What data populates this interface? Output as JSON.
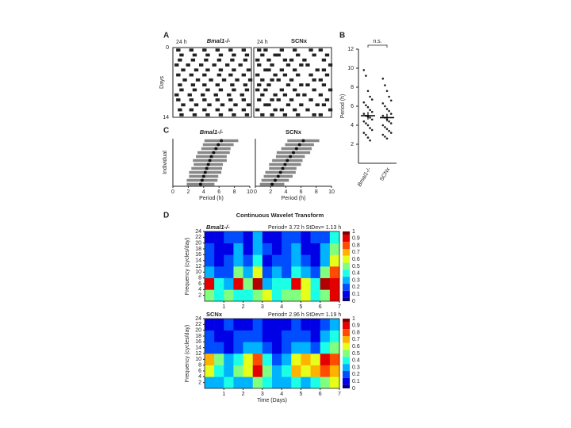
{
  "chart_data": [
    {
      "type": "actogram",
      "panel": "A",
      "title": "Bmal1-/-",
      "period_label": "24 h",
      "ylabel": "Days",
      "xlim": [
        0,
        24
      ],
      "ylim": [
        0,
        14
      ],
      "yticks": [
        0,
        14
      ],
      "rows": [
        [
          1,
          5,
          9,
          13,
          17,
          21
        ],
        [
          2,
          6,
          10,
          14,
          18,
          22
        ],
        [
          1.5,
          5.5,
          9.5,
          13.5,
          17.5,
          21.5
        ],
        [
          0.5,
          4,
          8,
          12,
          16,
          20
        ],
        [
          2.5,
          6.5,
          10,
          14,
          18,
          22.5
        ],
        [
          1,
          5,
          9,
          13.5,
          17,
          21
        ],
        [
          3,
          7,
          11,
          15,
          19,
          23
        ],
        [
          1.5,
          5.5,
          9,
          13,
          17.5,
          21.5
        ],
        [
          2,
          6,
          10,
          14,
          18,
          22
        ],
        [
          0.5,
          4.5,
          8.5,
          12.5,
          16.5,
          20.5
        ],
        [
          1,
          5,
          9,
          13,
          17,
          21
        ],
        [
          2.5,
          6.5,
          10.5,
          14.5,
          18.5,
          22.5
        ],
        [
          1.5,
          5,
          9,
          13,
          17,
          21
        ],
        [
          2,
          6,
          10,
          14,
          18,
          22
        ]
      ]
    },
    {
      "type": "actogram",
      "title": "SCNx",
      "period_label": "24 h",
      "xlim": [
        0,
        24
      ],
      "ylim": [
        0,
        14
      ],
      "rows": [
        [
          1,
          3,
          8,
          12,
          17,
          20
        ],
        [
          2,
          6,
          7,
          13,
          18,
          22
        ],
        [
          0.5,
          4,
          9,
          11,
          15,
          21
        ],
        [
          1,
          5,
          10,
          14,
          16,
          23
        ],
        [
          3,
          4,
          8,
          12,
          19,
          21
        ],
        [
          0.5,
          6,
          9,
          13,
          17,
          22
        ],
        [
          2,
          5,
          7,
          11,
          18,
          20
        ],
        [
          1,
          4,
          10,
          14,
          16,
          21
        ],
        [
          0.5,
          3,
          8,
          12,
          18,
          23
        ],
        [
          2,
          6,
          9,
          13,
          15,
          20
        ],
        [
          1,
          5,
          7,
          11,
          17,
          22
        ],
        [
          3,
          4,
          10,
          14,
          19,
          21
        ],
        [
          0.5,
          6,
          8,
          12,
          16,
          23
        ],
        [
          2,
          5,
          9,
          13,
          18,
          20
        ]
      ]
    },
    {
      "type": "strip",
      "panel": "B",
      "ylabel": "Period (h)",
      "annotation": "n.s.",
      "categories": [
        "Bmal1-/-",
        "SCNx"
      ],
      "ylim": [
        0,
        12
      ],
      "yticks": [
        2,
        4,
        6,
        8,
        10,
        12
      ],
      "values": [
        [
          9.8,
          9.2,
          7.6,
          7.0,
          6.7,
          6.4,
          6.1,
          5.9,
          5.6,
          5.4,
          5.2,
          5.0,
          4.9,
          4.8,
          4.6,
          4.4,
          4.2,
          4.0,
          3.7,
          3.5,
          3.2,
          3.0,
          2.7,
          2.4
        ],
        [
          8.9,
          8.2,
          7.6,
          7.0,
          6.6,
          6.3,
          6.0,
          5.7,
          5.5,
          5.2,
          5.0,
          4.8,
          4.6,
          4.4,
          4.2,
          4.0,
          3.8,
          3.6,
          3.4,
          3.2,
          3.0,
          2.8,
          2.6
        ]
      ],
      "means": [
        5.0,
        4.8
      ],
      "sem": [
        0.4,
        0.4
      ]
    },
    {
      "type": "range",
      "panel": "C",
      "title": "Bmal1-/-",
      "xlabel": "Period (h)",
      "ylabel": "Individual",
      "xlim": [
        0,
        10
      ],
      "xticks": [
        0,
        2,
        4,
        6,
        8,
        10
      ],
      "values": [
        3.6,
        3.8,
        4.0,
        4.2,
        4.4,
        4.6,
        4.8,
        5.0,
        5.3,
        5.6,
        5.9,
        6.3
      ],
      "errors": [
        1.8,
        2.0,
        1.9,
        2.1,
        2.0,
        1.9,
        2.2,
        2.0,
        2.1,
        1.9,
        2.0,
        2.2
      ]
    },
    {
      "type": "range",
      "title": "SCNx",
      "xlabel": "Period (h)",
      "xlim": [
        0,
        10
      ],
      "xticks": [
        0,
        2,
        4,
        6,
        8,
        10
      ],
      "values": [
        2.2,
        2.6,
        3.0,
        3.3,
        3.6,
        3.9,
        4.2,
        4.6,
        5.0,
        5.4,
        5.8,
        6.3
      ],
      "errors": [
        1.6,
        1.8,
        1.9,
        2.0,
        1.8,
        2.1,
        2.0,
        1.9,
        2.2,
        2.0,
        1.9,
        2.1
      ]
    },
    {
      "type": "heatmap",
      "panel": "D",
      "title": "Continuous Wavelet Transform",
      "annotation": "Bmal1-/-",
      "stats": "Period= 3.72 h StDev= 1.13 h",
      "ylabel": "Frequency (cycles/day)",
      "xlim": [
        0,
        7
      ],
      "xticks": [
        1,
        2,
        3,
        4,
        5,
        6,
        7
      ],
      "ylim": [
        0,
        24
      ],
      "yticks": [
        2,
        4,
        6,
        8,
        10,
        12,
        14,
        16,
        18,
        20,
        22,
        24
      ],
      "colorbar_ticks": [
        1,
        0.9,
        0.8,
        0.7,
        0.6,
        0.5,
        0.4,
        0.3,
        0.2,
        0.1,
        0
      ],
      "z": [
        [
          0.5,
          0.4,
          0.5,
          0.4,
          0.4,
          0.5,
          0.6,
          0.4,
          0.5,
          0.5,
          0.6,
          0.4,
          0.5,
          0.9
        ],
        [
          0.9,
          0.4,
          0.3,
          0.9,
          0.5,
          0.95,
          0.3,
          0.4,
          0.4,
          0.9,
          0.6,
          0.4,
          0.95,
          0.9
        ],
        [
          0.3,
          0.2,
          0.2,
          0.5,
          0.3,
          0.6,
          0.2,
          0.3,
          0.2,
          0.4,
          0.3,
          0.2,
          0.5,
          0.8
        ],
        [
          0.2,
          0.1,
          0.2,
          0.3,
          0.2,
          0.4,
          0.1,
          0.2,
          0.2,
          0.3,
          0.2,
          0.1,
          0.3,
          0.6
        ],
        [
          0.2,
          0.1,
          0.1,
          0.3,
          0.1,
          0.3,
          0.2,
          0.1,
          0.2,
          0.3,
          0.1,
          0.1,
          0.3,
          0.5
        ],
        [
          0.1,
          0.1,
          0.2,
          0.2,
          0.1,
          0.3,
          0.1,
          0.1,
          0.2,
          0.2,
          0.1,
          0.2,
          0.2,
          0.4
        ]
      ]
    },
    {
      "type": "heatmap",
      "annotation": "SCNx",
      "stats": "Period= 2.96 h StDev= 1.19 h",
      "ylabel": "Frequency (cycles/day)",
      "xlabel": "Time (Days)",
      "xlim": [
        0,
        7
      ],
      "xticks": [
        1,
        2,
        3,
        4,
        5,
        6,
        7
      ],
      "ylim": [
        0,
        24
      ],
      "yticks": [
        2,
        4,
        6,
        8,
        10,
        12,
        14,
        16,
        18,
        20,
        22,
        24
      ],
      "colorbar_ticks": [
        1,
        0.9,
        0.8,
        0.7,
        0.6,
        0.5,
        0.4,
        0.3,
        0.2,
        0.1,
        0
      ],
      "z": [
        [
          0.3,
          0.3,
          0.4,
          0.3,
          0.3,
          0.5,
          0.4,
          0.3,
          0.3,
          0.4,
          0.3,
          0.4,
          0.5,
          0.6
        ],
        [
          0.6,
          0.4,
          0.3,
          0.5,
          0.6,
          0.9,
          0.5,
          0.3,
          0.4,
          0.7,
          0.6,
          0.7,
          0.8,
          0.7
        ],
        [
          0.7,
          0.5,
          0.3,
          0.4,
          0.6,
          0.8,
          0.4,
          0.2,
          0.3,
          0.6,
          0.7,
          0.6,
          0.9,
          0.8
        ],
        [
          0.2,
          0.2,
          0.1,
          0.2,
          0.3,
          0.3,
          0.2,
          0.1,
          0.2,
          0.3,
          0.3,
          0.2,
          0.4,
          0.5
        ],
        [
          0.2,
          0.1,
          0.1,
          0.2,
          0.2,
          0.2,
          0.1,
          0.1,
          0.2,
          0.2,
          0.2,
          0.1,
          0.3,
          0.4
        ],
        [
          0.1,
          0.1,
          0.2,
          0.1,
          0.1,
          0.2,
          0.1,
          0.1,
          0.1,
          0.2,
          0.1,
          0.1,
          0.2,
          0.3
        ]
      ]
    }
  ]
}
